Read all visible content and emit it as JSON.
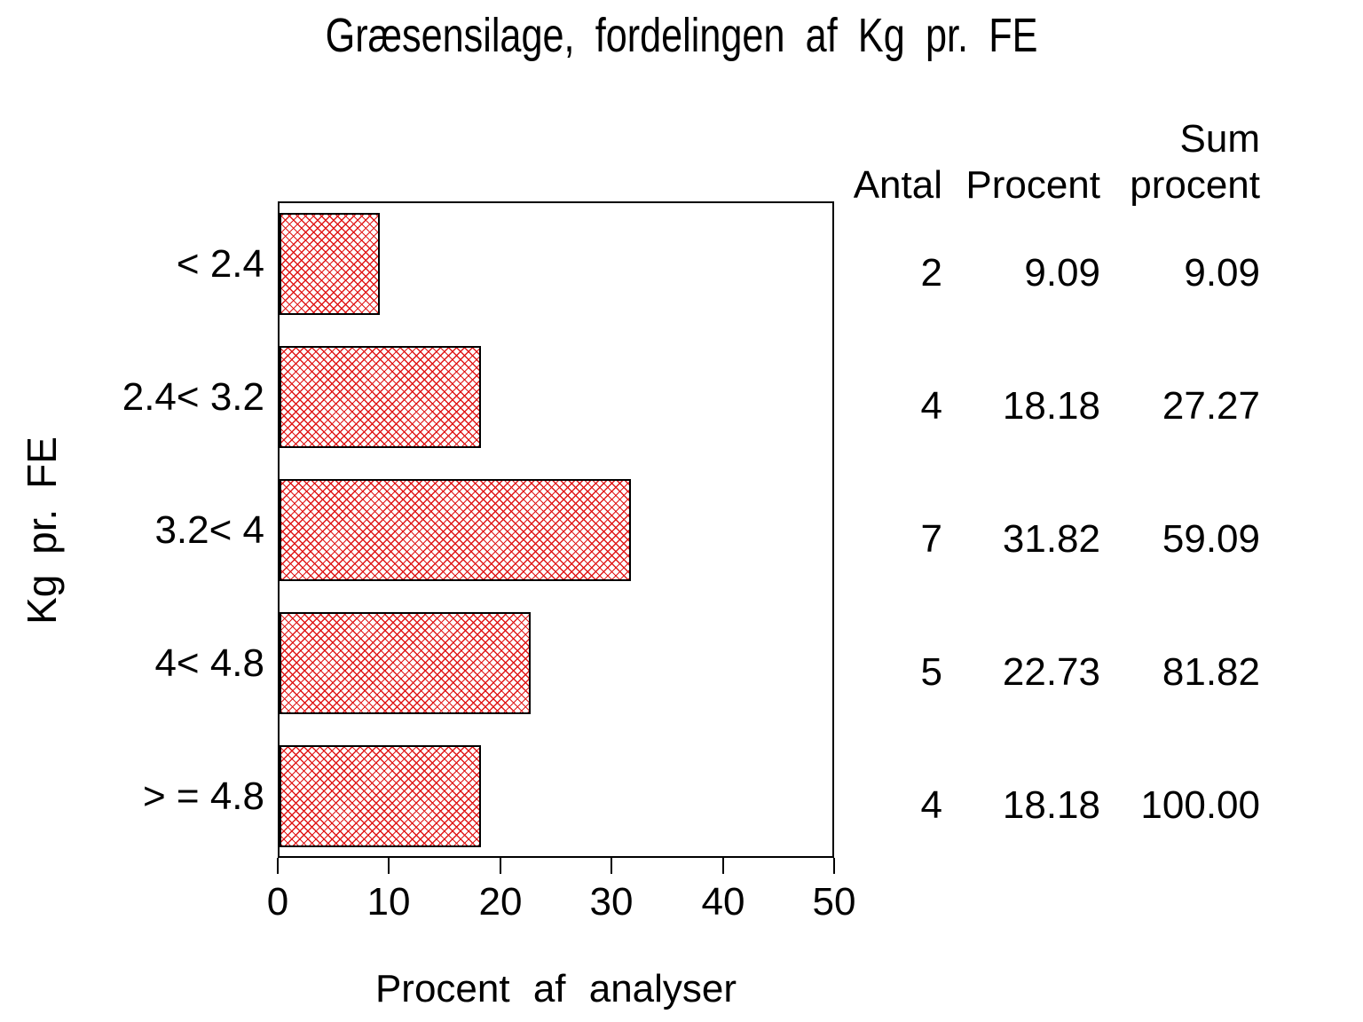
{
  "chart_data": {
    "type": "bar",
    "orientation": "horizontal",
    "title": "Græsensilage, fordelingen af Kg pr. FE",
    "xlabel": "Procent af analyser",
    "ylabel": "Kg pr. FE",
    "xlim": [
      0,
      50
    ],
    "x_tick_labels": [
      "0",
      "10",
      "20",
      "30",
      "40",
      "50"
    ],
    "grid": false,
    "legend": false,
    "categories": [
      "< 2.4",
      "2.4< 3.2",
      "3.2< 4",
      "4< 4.8",
      "> = 4.8"
    ],
    "values": [
      9.09,
      18.18,
      31.82,
      22.73,
      18.18
    ],
    "counts": [
      2,
      4,
      7,
      5,
      4
    ],
    "cum_percent": [
      9.09,
      27.27,
      59.09,
      81.82,
      100.0
    ],
    "bar_style": {
      "hatch": "diagonal-crosshatch",
      "hatch_color": "#e01818",
      "border_color": "#000000",
      "background": "#ffffff"
    }
  },
  "stats_table": {
    "col_headers": {
      "antal": "Antal",
      "procent": "Procent",
      "sum_top": "Sum",
      "sum_bottom": "procent"
    },
    "rows": [
      {
        "antal": "2",
        "procent": "9.09",
        "sum_procent": "9.09"
      },
      {
        "antal": "4",
        "procent": "18.18",
        "sum_procent": "27.27"
      },
      {
        "antal": "7",
        "procent": "31.82",
        "sum_procent": "59.09"
      },
      {
        "antal": "5",
        "procent": "22.73",
        "sum_procent": "81.82"
      },
      {
        "antal": "4",
        "procent": "18.18",
        "sum_procent": "100.00"
      }
    ]
  }
}
